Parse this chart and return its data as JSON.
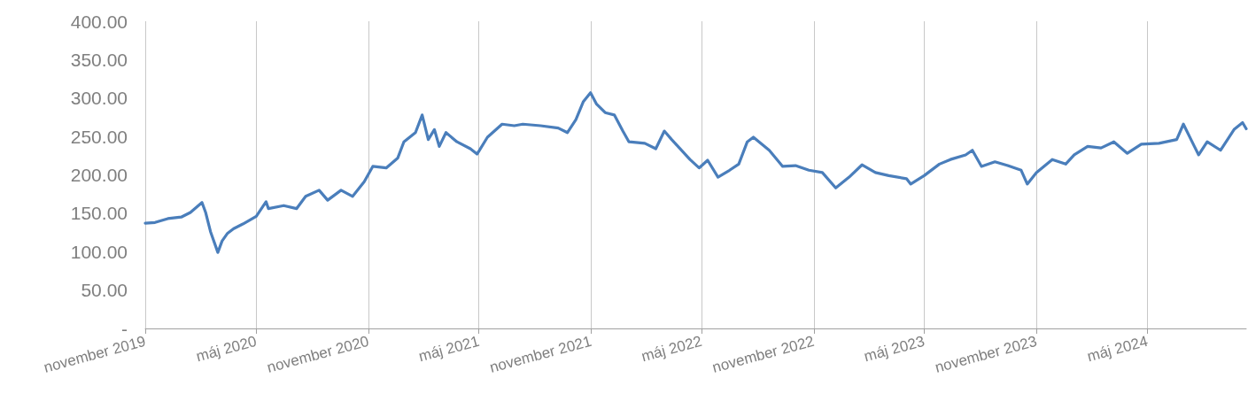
{
  "chart_data": {
    "type": "line",
    "x": [
      "2019-11-01",
      "2019-11-17",
      "2019-12-08",
      "2019-12-30",
      "2020-01-14",
      "2020-02-02",
      "2020-02-08",
      "2020-02-16",
      "2020-02-28",
      "2020-03-06",
      "2020-03-15",
      "2020-03-25",
      "2020-04-09",
      "2020-05-01",
      "2020-05-17",
      "2020-05-21",
      "2020-06-15",
      "2020-07-06",
      "2020-07-21",
      "2020-08-12",
      "2020-08-26",
      "2020-09-17",
      "2020-10-06",
      "2020-10-25",
      "2020-11-08",
      "2020-11-30",
      "2020-12-19",
      "2020-12-29",
      "2021-01-17",
      "2021-01-28",
      "2021-02-07",
      "2021-02-17",
      "2021-02-25",
      "2021-03-08",
      "2021-03-26",
      "2021-04-17",
      "2021-04-28",
      "2021-05-15",
      "2021-06-08",
      "2021-06-28",
      "2021-07-12",
      "2021-08-10",
      "2021-09-08",
      "2021-09-23",
      "2021-10-07",
      "2021-10-19",
      "2021-10-31",
      "2021-11-10",
      "2021-11-24",
      "2021-12-09",
      "2021-12-23",
      "2022-01-02",
      "2022-01-28",
      "2022-02-15",
      "2022-03-01",
      "2022-03-13",
      "2022-04-12",
      "2022-04-27",
      "2022-05-11",
      "2022-05-28",
      "2022-06-16",
      "2022-07-01",
      "2022-07-15",
      "2022-07-25",
      "2022-08-20",
      "2022-09-11",
      "2022-10-02",
      "2022-10-24",
      "2022-11-15",
      "2022-12-07",
      "2022-12-29",
      "2023-01-19",
      "2023-02-10",
      "2023-03-04",
      "2023-04-02",
      "2023-04-09",
      "2023-05-01",
      "2023-05-26",
      "2023-06-13",
      "2023-07-08",
      "2023-07-19",
      "2023-08-03",
      "2023-08-25",
      "2023-09-15",
      "2023-10-07",
      "2023-10-17",
      "2023-11-01",
      "2023-11-27",
      "2023-12-19",
      "2024-01-02",
      "2024-01-24",
      "2024-02-15",
      "2024-03-07",
      "2024-03-29",
      "2024-04-21",
      "2024-05-20",
      "2024-06-18",
      "2024-06-29",
      "2024-07-17",
      "2024-07-24",
      "2024-08-07",
      "2024-08-29",
      "2024-09-20",
      "2024-10-04",
      "2024-10-10"
    ],
    "series": [
      {
        "color": "#4a7ebb",
        "values": [
          137,
          138,
          143,
          145,
          151,
          164,
          151,
          126,
          99,
          114,
          124,
          130,
          136,
          146,
          165,
          156,
          160,
          156,
          172,
          180,
          167,
          180,
          172,
          191,
          211,
          209,
          222,
          243,
          255,
          278,
          246,
          259,
          237,
          255,
          243,
          234,
          227,
          249,
          266,
          264,
          266,
          264,
          261,
          255,
          272,
          295,
          307,
          292,
          281,
          278,
          257,
          243,
          241,
          234,
          257,
          246,
          220,
          209,
          219,
          197,
          206,
          214,
          243,
          249,
          232,
          211,
          212,
          206,
          203,
          183,
          197,
          213,
          203,
          199,
          195,
          188,
          199,
          214,
          220,
          226,
          232,
          211,
          217,
          212,
          206,
          188,
          203,
          220,
          214,
          226,
          237,
          235,
          243,
          228,
          240,
          241,
          246,
          266,
          237,
          226,
          243,
          232,
          259,
          268,
          260
        ]
      }
    ],
    "xlim": [
      "2019-11-01",
      "2024-10-10"
    ],
    "xticks": [
      {
        "value": "2019-11-01",
        "label": "november 2019"
      },
      {
        "value": "2020-05-01",
        "label": "máj 2020"
      },
      {
        "value": "2020-11-01",
        "label": "november 2020"
      },
      {
        "value": "2021-05-01",
        "label": "máj 2021"
      },
      {
        "value": "2021-11-01",
        "label": "november 2021"
      },
      {
        "value": "2022-05-01",
        "label": "máj 2022"
      },
      {
        "value": "2022-11-01",
        "label": "november 2022"
      },
      {
        "value": "2023-05-01",
        "label": "máj 2023"
      },
      {
        "value": "2023-11-01",
        "label": "november 2023"
      },
      {
        "value": "2024-05-01",
        "label": "máj 2024"
      }
    ],
    "ylim": [
      0,
      400
    ],
    "yticks": [
      {
        "value": 0,
        "label": "-"
      },
      {
        "value": 50,
        "label": "50.00"
      },
      {
        "value": 100,
        "label": "100.00"
      },
      {
        "value": 150,
        "label": "150.00"
      },
      {
        "value": 200,
        "label": "200.00"
      },
      {
        "value": 250,
        "label": "250.00"
      },
      {
        "value": 300,
        "label": "300.00"
      },
      {
        "value": 350,
        "label": "350.00"
      },
      {
        "value": 400,
        "label": "400.00"
      }
    ],
    "grid": "x",
    "line_style": "solid",
    "marker": "none"
  }
}
